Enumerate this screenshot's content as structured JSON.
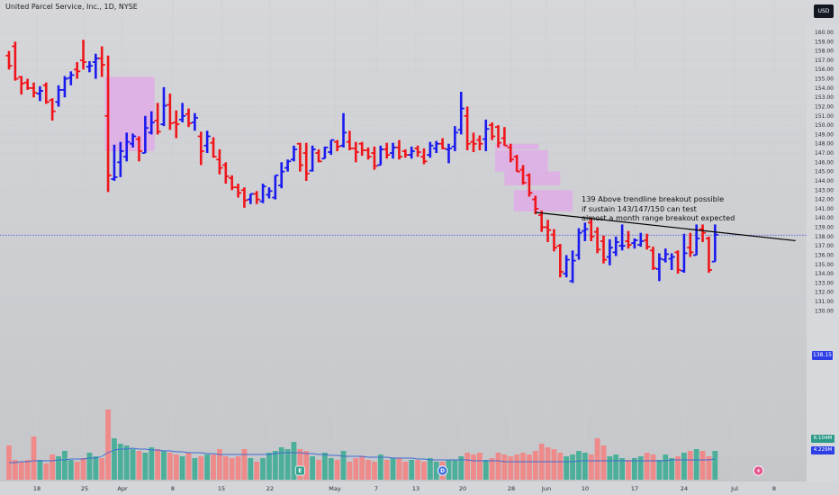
{
  "header": {
    "symbol_line": "United Parcel Service, Inc., 1D, NYSE",
    "currency": "USD"
  },
  "annotation": {
    "lines": [
      "139 Above trendline breakout possible",
      "if sustain 143/147/150 can test",
      "almost a month range breakout expected"
    ]
  },
  "price_axis": {
    "labels": [
      "160.00",
      "159.00",
      "158.00",
      "157.00",
      "156.00",
      "155.00",
      "154.00",
      "153.00",
      "152.00",
      "151.00",
      "150.00",
      "149.00",
      "148.00",
      "147.00",
      "146.00",
      "145.00",
      "144.00",
      "143.00",
      "142.00",
      "141.00",
      "140.00",
      "139.00",
      "138.00",
      "137.00",
      "136.00",
      "135.00",
      "134.00",
      "133.00",
      "132.00",
      "131.00",
      "130.00"
    ],
    "last_price": "138.15",
    "volume_tag_1": "6.104M",
    "volume_tag_2": "4.229M"
  },
  "date_axis": {
    "labels": [
      "18",
      "25",
      "Apr",
      "8",
      "15",
      "22",
      "May",
      "7",
      "13",
      "20",
      "28",
      "Jun",
      "10",
      "17",
      "24",
      "Jul",
      "8"
    ]
  },
  "events": {
    "earnings_label": "E",
    "dividend_label": "D"
  },
  "colors": {
    "up": "#1a1aef",
    "down": "#f0151a",
    "vol_up": "#4caf9a",
    "vol_down": "#ef8a8a",
    "zone": "#e2a7e8",
    "trend": "#000000",
    "ma": "#3f6bd3",
    "price_line": "#3a4ed8"
  },
  "chart_data": {
    "type": "ohlc_bar",
    "title": "United Parcel Service, Inc., 1D, NYSE",
    "ylim": [
      129.5,
      161
    ],
    "bars": [
      {
        "o": 157.5,
        "h": 158.0,
        "l": 156.0,
        "c": 156.4
      },
      {
        "o": 158.5,
        "h": 159.0,
        "l": 154.8,
        "c": 155.0
      },
      {
        "o": 155.2,
        "h": 155.3,
        "l": 153.3,
        "c": 154.5
      },
      {
        "o": 154.6,
        "h": 155.0,
        "l": 153.8,
        "c": 154.0
      },
      {
        "o": 154.0,
        "h": 154.6,
        "l": 153.0,
        "c": 153.5
      },
      {
        "o": 153.4,
        "h": 154.2,
        "l": 152.6,
        "c": 153.7
      },
      {
        "o": 154.3,
        "h": 154.6,
        "l": 152.3,
        "c": 152.5
      },
      {
        "o": 152.7,
        "h": 152.9,
        "l": 150.5,
        "c": 151.5
      },
      {
        "o": 152.5,
        "h": 154.3,
        "l": 152.0,
        "c": 153.8
      },
      {
        "o": 153.8,
        "h": 155.3,
        "l": 153.0,
        "c": 155.0
      },
      {
        "o": 155.1,
        "h": 155.8,
        "l": 154.3,
        "c": 155.4
      },
      {
        "o": 156.0,
        "h": 156.8,
        "l": 155.0,
        "c": 155.8
      },
      {
        "o": 157.0,
        "h": 159.2,
        "l": 156.0,
        "c": 156.8
      },
      {
        "o": 156.3,
        "h": 156.9,
        "l": 155.7,
        "c": 156.4
      },
      {
        "o": 156.8,
        "h": 157.7,
        "l": 155.0,
        "c": 157.2
      },
      {
        "o": 157.2,
        "h": 158.5,
        "l": 155.2,
        "c": 156.5
      },
      {
        "o": 151.0,
        "h": 157.5,
        "l": 142.8,
        "c": 144.6
      },
      {
        "o": 144.2,
        "h": 147.9,
        "l": 144.0,
        "c": 144.4
      },
      {
        "o": 146.0,
        "h": 148.2,
        "l": 144.4,
        "c": 147.2
      },
      {
        "o": 146.6,
        "h": 149.2,
        "l": 146.1,
        "c": 148.2
      },
      {
        "o": 148.0,
        "h": 149.1,
        "l": 147.6,
        "c": 148.8
      },
      {
        "o": 148.5,
        "h": 148.8,
        "l": 146.1,
        "c": 147.2
      },
      {
        "o": 147.0,
        "h": 151.0,
        "l": 147.0,
        "c": 149.7
      },
      {
        "o": 149.2,
        "h": 151.5,
        "l": 149.0,
        "c": 150.3
      },
      {
        "o": 150.5,
        "h": 152.4,
        "l": 149.0,
        "c": 149.3
      },
      {
        "o": 150.1,
        "h": 154.1,
        "l": 149.9,
        "c": 152.1
      },
      {
        "o": 152.2,
        "h": 153.4,
        "l": 149.5,
        "c": 150.2
      },
      {
        "o": 150.3,
        "h": 151.6,
        "l": 148.6,
        "c": 150.1
      },
      {
        "o": 150.6,
        "h": 152.4,
        "l": 150.3,
        "c": 151.0
      },
      {
        "o": 151.2,
        "h": 151.8,
        "l": 149.8,
        "c": 150.2
      },
      {
        "o": 150.3,
        "h": 151.3,
        "l": 149.4,
        "c": 150.8
      },
      {
        "o": 148.8,
        "h": 149.3,
        "l": 145.7,
        "c": 147.2
      },
      {
        "o": 147.8,
        "h": 149.4,
        "l": 147.0,
        "c": 148.8
      },
      {
        "o": 148.1,
        "h": 148.7,
        "l": 146.5,
        "c": 146.6
      },
      {
        "o": 146.3,
        "h": 147.4,
        "l": 144.7,
        "c": 145.4
      },
      {
        "o": 145.7,
        "h": 146.0,
        "l": 143.7,
        "c": 144.5
      },
      {
        "o": 144.3,
        "h": 144.6,
        "l": 143.0,
        "c": 143.3
      },
      {
        "o": 143.3,
        "h": 143.7,
        "l": 142.2,
        "c": 142.7
      },
      {
        "o": 143.0,
        "h": 143.3,
        "l": 141.1,
        "c": 141.9
      },
      {
        "o": 142.0,
        "h": 142.6,
        "l": 141.5,
        "c": 142.6
      },
      {
        "o": 142.6,
        "h": 142.9,
        "l": 141.5,
        "c": 142.0
      },
      {
        "o": 141.8,
        "h": 143.7,
        "l": 141.6,
        "c": 143.4
      },
      {
        "o": 142.5,
        "h": 143.3,
        "l": 142.1,
        "c": 142.9
      },
      {
        "o": 142.2,
        "h": 144.6,
        "l": 142.0,
        "c": 144.6
      },
      {
        "o": 143.5,
        "h": 146.0,
        "l": 143.2,
        "c": 145.0
      },
      {
        "o": 145.4,
        "h": 146.3,
        "l": 145.0,
        "c": 146.1
      },
      {
        "o": 146.3,
        "h": 147.8,
        "l": 146.1,
        "c": 147.4
      },
      {
        "o": 148.0,
        "h": 148.1,
        "l": 145.0,
        "c": 145.7
      },
      {
        "o": 147.0,
        "h": 148.1,
        "l": 144.0,
        "c": 144.8
      },
      {
        "o": 145.1,
        "h": 147.8,
        "l": 145.0,
        "c": 147.4
      },
      {
        "o": 147.0,
        "h": 147.4,
        "l": 146.0,
        "c": 146.1
      },
      {
        "o": 146.4,
        "h": 147.7,
        "l": 146.4,
        "c": 147.6
      },
      {
        "o": 147.1,
        "h": 148.4,
        "l": 146.8,
        "c": 148.4
      },
      {
        "o": 148.2,
        "h": 148.4,
        "l": 147.2,
        "c": 147.7
      },
      {
        "o": 147.8,
        "h": 151.3,
        "l": 147.6,
        "c": 149.2
      },
      {
        "o": 148.2,
        "h": 149.4,
        "l": 147.3,
        "c": 147.5
      },
      {
        "o": 147.5,
        "h": 148.2,
        "l": 146.0,
        "c": 147.1
      },
      {
        "o": 148.0,
        "h": 148.2,
        "l": 146.7,
        "c": 147.3
      },
      {
        "o": 147.3,
        "h": 147.6,
        "l": 146.3,
        "c": 146.6
      },
      {
        "o": 147.0,
        "h": 147.7,
        "l": 145.2,
        "c": 145.6
      },
      {
        "o": 145.7,
        "h": 147.8,
        "l": 145.7,
        "c": 147.4
      },
      {
        "o": 147.4,
        "h": 148.1,
        "l": 146.4,
        "c": 146.8
      },
      {
        "o": 147.0,
        "h": 148.1,
        "l": 146.4,
        "c": 147.6
      },
      {
        "o": 147.6,
        "h": 148.4,
        "l": 146.3,
        "c": 146.6
      },
      {
        "o": 147.2,
        "h": 147.4,
        "l": 146.5,
        "c": 146.8
      },
      {
        "o": 146.8,
        "h": 147.7,
        "l": 146.4,
        "c": 147.2
      },
      {
        "o": 147.5,
        "h": 147.8,
        "l": 146.6,
        "c": 147.1
      },
      {
        "o": 146.6,
        "h": 147.5,
        "l": 145.8,
        "c": 146.1
      },
      {
        "o": 146.8,
        "h": 148.2,
        "l": 146.5,
        "c": 147.8
      },
      {
        "o": 147.5,
        "h": 148.3,
        "l": 147.0,
        "c": 148.0
      },
      {
        "o": 148.0,
        "h": 148.6,
        "l": 147.4,
        "c": 147.5
      },
      {
        "o": 147.4,
        "h": 148.0,
        "l": 145.9,
        "c": 147.5
      },
      {
        "o": 147.7,
        "h": 149.9,
        "l": 147.2,
        "c": 149.2
      },
      {
        "o": 149.5,
        "h": 153.6,
        "l": 149.0,
        "c": 151.8
      },
      {
        "o": 151.0,
        "h": 152.0,
        "l": 147.3,
        "c": 148.0
      },
      {
        "o": 148.2,
        "h": 149.2,
        "l": 147.1,
        "c": 148.0
      },
      {
        "o": 148.4,
        "h": 148.9,
        "l": 147.3,
        "c": 148.0
      },
      {
        "o": 148.5,
        "h": 150.6,
        "l": 147.2,
        "c": 149.6
      },
      {
        "o": 150.0,
        "h": 150.3,
        "l": 148.4,
        "c": 148.8
      },
      {
        "o": 149.8,
        "h": 150.0,
        "l": 147.6,
        "c": 148.1
      },
      {
        "o": 148.6,
        "h": 149.8,
        "l": 147.8,
        "c": 147.8
      },
      {
        "o": 147.6,
        "h": 148.0,
        "l": 146.0,
        "c": 146.3
      },
      {
        "o": 146.6,
        "h": 146.8,
        "l": 145.0,
        "c": 145.0
      },
      {
        "o": 145.2,
        "h": 145.7,
        "l": 143.6,
        "c": 143.8
      },
      {
        "o": 144.6,
        "h": 144.8,
        "l": 142.3,
        "c": 142.7
      },
      {
        "o": 142.0,
        "h": 142.4,
        "l": 140.4,
        "c": 141.0
      },
      {
        "o": 140.3,
        "h": 140.8,
        "l": 138.5,
        "c": 139.0
      },
      {
        "o": 139.0,
        "h": 139.8,
        "l": 137.4,
        "c": 138.7
      },
      {
        "o": 138.2,
        "h": 138.8,
        "l": 136.4,
        "c": 136.8
      },
      {
        "o": 137.0,
        "h": 137.2,
        "l": 133.6,
        "c": 134.2
      },
      {
        "o": 134.0,
        "h": 136.0,
        "l": 133.6,
        "c": 135.5
      },
      {
        "o": 133.2,
        "h": 136.5,
        "l": 133.0,
        "c": 135.4
      },
      {
        "o": 136.0,
        "h": 138.9,
        "l": 135.5,
        "c": 138.4
      },
      {
        "o": 138.6,
        "h": 139.5,
        "l": 137.5,
        "c": 138.8
      },
      {
        "o": 139.5,
        "h": 140.0,
        "l": 137.5,
        "c": 138.0
      },
      {
        "o": 138.5,
        "h": 139.0,
        "l": 136.2,
        "c": 136.6
      },
      {
        "o": 137.5,
        "h": 138.1,
        "l": 135.1,
        "c": 135.5
      },
      {
        "o": 135.8,
        "h": 137.7,
        "l": 134.9,
        "c": 136.8
      },
      {
        "o": 136.3,
        "h": 138.0,
        "l": 135.9,
        "c": 137.4
      },
      {
        "o": 137.0,
        "h": 139.3,
        "l": 136.5,
        "c": 137.0
      },
      {
        "o": 137.5,
        "h": 138.6,
        "l": 136.7,
        "c": 137.1
      },
      {
        "o": 137.3,
        "h": 137.8,
        "l": 136.7,
        "c": 137.6
      },
      {
        "o": 137.1,
        "h": 138.4,
        "l": 136.9,
        "c": 137.5
      },
      {
        "o": 137.6,
        "h": 138.3,
        "l": 136.6,
        "c": 136.9
      },
      {
        "o": 136.5,
        "h": 136.9,
        "l": 134.4,
        "c": 134.6
      },
      {
        "o": 134.5,
        "h": 136.2,
        "l": 133.2,
        "c": 135.6
      },
      {
        "o": 135.5,
        "h": 136.7,
        "l": 135.2,
        "c": 136.1
      },
      {
        "o": 135.6,
        "h": 136.2,
        "l": 134.4,
        "c": 135.8
      },
      {
        "o": 136.3,
        "h": 136.5,
        "l": 134.0,
        "c": 134.4
      },
      {
        "o": 134.3,
        "h": 138.3,
        "l": 134.1,
        "c": 136.2
      },
      {
        "o": 136.8,
        "h": 138.4,
        "l": 135.8,
        "c": 136.3
      },
      {
        "o": 136.0,
        "h": 139.3,
        "l": 136.0,
        "c": 137.8
      },
      {
        "o": 138.8,
        "h": 139.3,
        "l": 137.4,
        "c": 138.4
      },
      {
        "o": 137.8,
        "h": 138.0,
        "l": 134.1,
        "c": 134.4
      },
      {
        "o": 135.3,
        "h": 139.3,
        "l": 135.3,
        "c": 138.2
      }
    ],
    "volume": [
      38,
      22,
      20,
      22,
      48,
      22,
      18,
      28,
      26,
      32,
      22,
      20,
      24,
      30,
      26,
      24,
      78,
      46,
      40,
      38,
      34,
      32,
      30,
      36,
      34,
      32,
      30,
      28,
      26,
      30,
      24,
      26,
      28,
      28,
      34,
      26,
      24,
      26,
      34,
      24,
      20,
      24,
      30,
      32,
      36,
      34,
      42,
      34,
      32,
      26,
      22,
      30,
      24,
      22,
      32,
      20,
      24,
      26,
      22,
      20,
      28,
      22,
      24,
      24,
      20,
      22,
      22,
      20,
      24,
      20,
      20,
      22,
      22,
      26,
      30,
      28,
      30,
      22,
      24,
      30,
      28,
      26,
      28,
      30,
      28,
      32,
      40,
      36,
      34,
      30,
      26,
      28,
      32,
      30,
      28,
      46,
      38,
      26,
      28,
      24,
      22,
      24,
      26,
      30,
      28,
      22,
      28,
      24,
      26,
      30,
      32,
      34,
      32,
      26,
      32,
      30,
      44
    ],
    "moving_average": [
      19,
      19,
      20,
      20,
      21,
      21,
      21,
      21,
      22,
      22,
      23,
      23,
      23,
      24,
      24,
      26,
      30,
      33,
      34,
      34,
      35,
      34,
      34,
      33,
      33,
      32,
      32,
      31,
      31,
      30,
      30,
      30,
      29,
      29,
      28,
      28,
      28,
      28,
      28,
      28,
      28,
      28,
      28,
      29,
      30,
      30,
      30,
      30,
      29,
      29,
      28,
      28,
      27,
      27,
      26,
      26,
      26,
      26,
      25,
      25,
      25,
      25,
      24,
      24,
      24,
      24,
      23,
      23,
      22,
      22,
      22,
      22,
      22,
      22,
      22,
      21,
      21,
      21,
      21,
      21,
      20,
      20,
      20,
      20,
      20,
      20,
      20,
      20,
      20,
      20,
      20,
      20,
      21,
      21,
      21,
      21,
      21,
      21,
      21,
      21,
      21,
      21,
      21,
      21,
      21,
      21,
      21,
      22,
      22,
      22,
      22,
      22,
      22,
      22,
      23,
      23,
      23
    ],
    "last_price": 138.15,
    "trendline": {
      "from": {
        "bar": 85,
        "price": 140.6
      },
      "to": {
        "bar": 127,
        "price": 137.55
      }
    },
    "zones": [
      {
        "bar_from": 15.5,
        "bar_to": 23.5,
        "price_from": 147.2,
        "price_to": 155.2
      },
      {
        "bar_from": 78.5,
        "bar_to": 85.5,
        "price_from": 147.4,
        "price_to": 148.0
      },
      {
        "bar_from": 78.5,
        "bar_to": 87.0,
        "price_from": 145.0,
        "price_to": 147.3
      },
      {
        "bar_from": 80.0,
        "bar_to": 89.0,
        "price_from": 143.5,
        "price_to": 145.0
      },
      {
        "bar_from": 81.5,
        "bar_to": 91.0,
        "price_from": 140.7,
        "price_to": 143.0
      }
    ],
    "events": [
      {
        "type": "E",
        "bar": 47
      },
      {
        "type": "D",
        "bar": 70
      },
      {
        "type": "split",
        "bar": 121
      }
    ]
  }
}
